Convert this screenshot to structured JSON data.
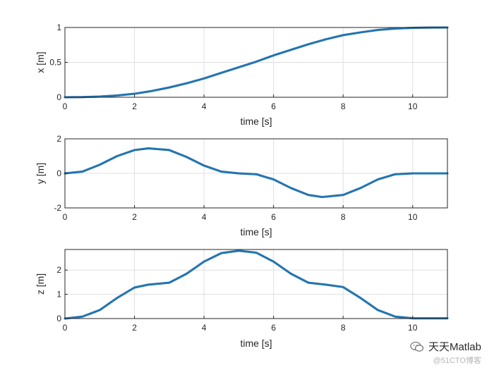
{
  "colors": {
    "line": "#1f77b4",
    "line_under": "#d9534f",
    "grid": "#dfdfdf",
    "axis": "#262626"
  },
  "watermark": {
    "title": "天天Matlab",
    "subtitle": "@51CTO博客",
    "icon": "wechat-icon"
  },
  "chart_data": [
    {
      "type": "line",
      "xlabel": "time [s]",
      "ylabel": "x [m]",
      "xlim": [
        0,
        11
      ],
      "ylim": [
        0,
        1
      ],
      "xticks": [
        "0",
        "2",
        "4",
        "6",
        "8",
        "10"
      ],
      "yticks": [
        "0",
        "0.5",
        "1"
      ],
      "grid": true,
      "series": [
        {
          "x": [
            0,
            0.5,
            1,
            1.5,
            2,
            2.5,
            3,
            3.5,
            4,
            4.5,
            5,
            5.5,
            6,
            6.5,
            7,
            7.5,
            8,
            8.5,
            9,
            9.5,
            10,
            10.5,
            11
          ],
          "values": [
            0,
            0.002,
            0.01,
            0.025,
            0.05,
            0.09,
            0.14,
            0.2,
            0.27,
            0.35,
            0.43,
            0.51,
            0.6,
            0.68,
            0.76,
            0.83,
            0.89,
            0.93,
            0.965,
            0.985,
            0.995,
            0.999,
            1.0
          ]
        }
      ]
    },
    {
      "type": "line",
      "xlabel": "time [s]",
      "ylabel": "y [m]",
      "xlim": [
        0,
        11
      ],
      "ylim": [
        -2,
        2
      ],
      "xticks": [
        "0",
        "2",
        "4",
        "6",
        "8",
        "10"
      ],
      "yticks": [
        "-2",
        "0",
        "2"
      ],
      "grid": true,
      "series": [
        {
          "x": [
            0,
            0.5,
            1,
            1.5,
            2,
            2.4,
            3,
            3.5,
            4,
            4.5,
            5,
            5.5,
            6,
            6.5,
            7,
            7.4,
            8,
            8.5,
            9,
            9.5,
            10,
            10.5,
            11
          ],
          "values": [
            0,
            0.1,
            0.5,
            1.0,
            1.35,
            1.45,
            1.35,
            0.95,
            0.45,
            0.1,
            0,
            -0.05,
            -0.35,
            -0.85,
            -1.25,
            -1.37,
            -1.25,
            -0.85,
            -0.35,
            -0.05,
            0,
            0,
            0
          ]
        }
      ]
    },
    {
      "type": "line",
      "xlabel": "time [s]",
      "ylabel": "z [m]",
      "xlim": [
        0,
        11
      ],
      "ylim": [
        0,
        2.85
      ],
      "xticks": [
        "0",
        "2",
        "4",
        "6",
        "8",
        "10"
      ],
      "yticks": [
        "0",
        "1",
        "2"
      ],
      "grid": true,
      "series": [
        {
          "x": [
            0,
            0.5,
            1,
            1.5,
            2,
            2.4,
            3,
            3.5,
            4,
            4.5,
            5,
            5.5,
            6,
            6.5,
            7,
            7.5,
            8,
            8.5,
            9,
            9.5,
            10,
            10.5,
            11
          ],
          "values": [
            0,
            0.08,
            0.35,
            0.85,
            1.28,
            1.4,
            1.48,
            1.85,
            2.35,
            2.7,
            2.8,
            2.72,
            2.35,
            1.85,
            1.48,
            1.4,
            1.3,
            0.85,
            0.35,
            0.08,
            0.01,
            0.01,
            0.01
          ]
        }
      ]
    }
  ]
}
